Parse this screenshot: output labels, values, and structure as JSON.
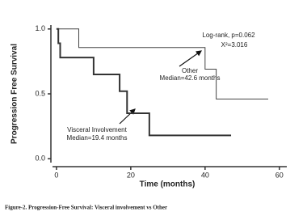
{
  "chart_data": {
    "type": "step",
    "ylabel": "Progression Free Survival",
    "xlabel": "Time (months)",
    "caption": "Figure-2. Progression-Free Survival: Visceral involvement vs Other",
    "annotations": [
      "Log-rank, p=0.062",
      "X²=3.016",
      "Other",
      "Median=42.6 months",
      "Visceral Involvement",
      "Median=19.4 months"
    ],
    "series": [
      {
        "name": "Other",
        "color": "#444444",
        "x": [
          0,
          6,
          40,
          43,
          57
        ],
        "values": [
          1.0,
          0.857,
          0.69,
          0.46,
          0.46
        ]
      },
      {
        "name": "Visceral Involvement",
        "color": "#333333",
        "x": [
          0,
          0.5,
          1,
          10,
          17,
          19,
          25,
          47
        ],
        "values": [
          1.0,
          0.89,
          0.78,
          0.65,
          0.52,
          0.35,
          0.18,
          0.18
        ]
      }
    ],
    "xlim": [
      -1.5,
      62
    ],
    "ylim": [
      -0.03,
      1.03
    ],
    "xticks": [
      0,
      20,
      40,
      60
    ],
    "yticks": [
      {
        "value": 0,
        "label": "0.0"
      },
      {
        "value": 0.5,
        "label": "0.5"
      },
      {
        "value": 1,
        "label": "1.0"
      }
    ]
  }
}
